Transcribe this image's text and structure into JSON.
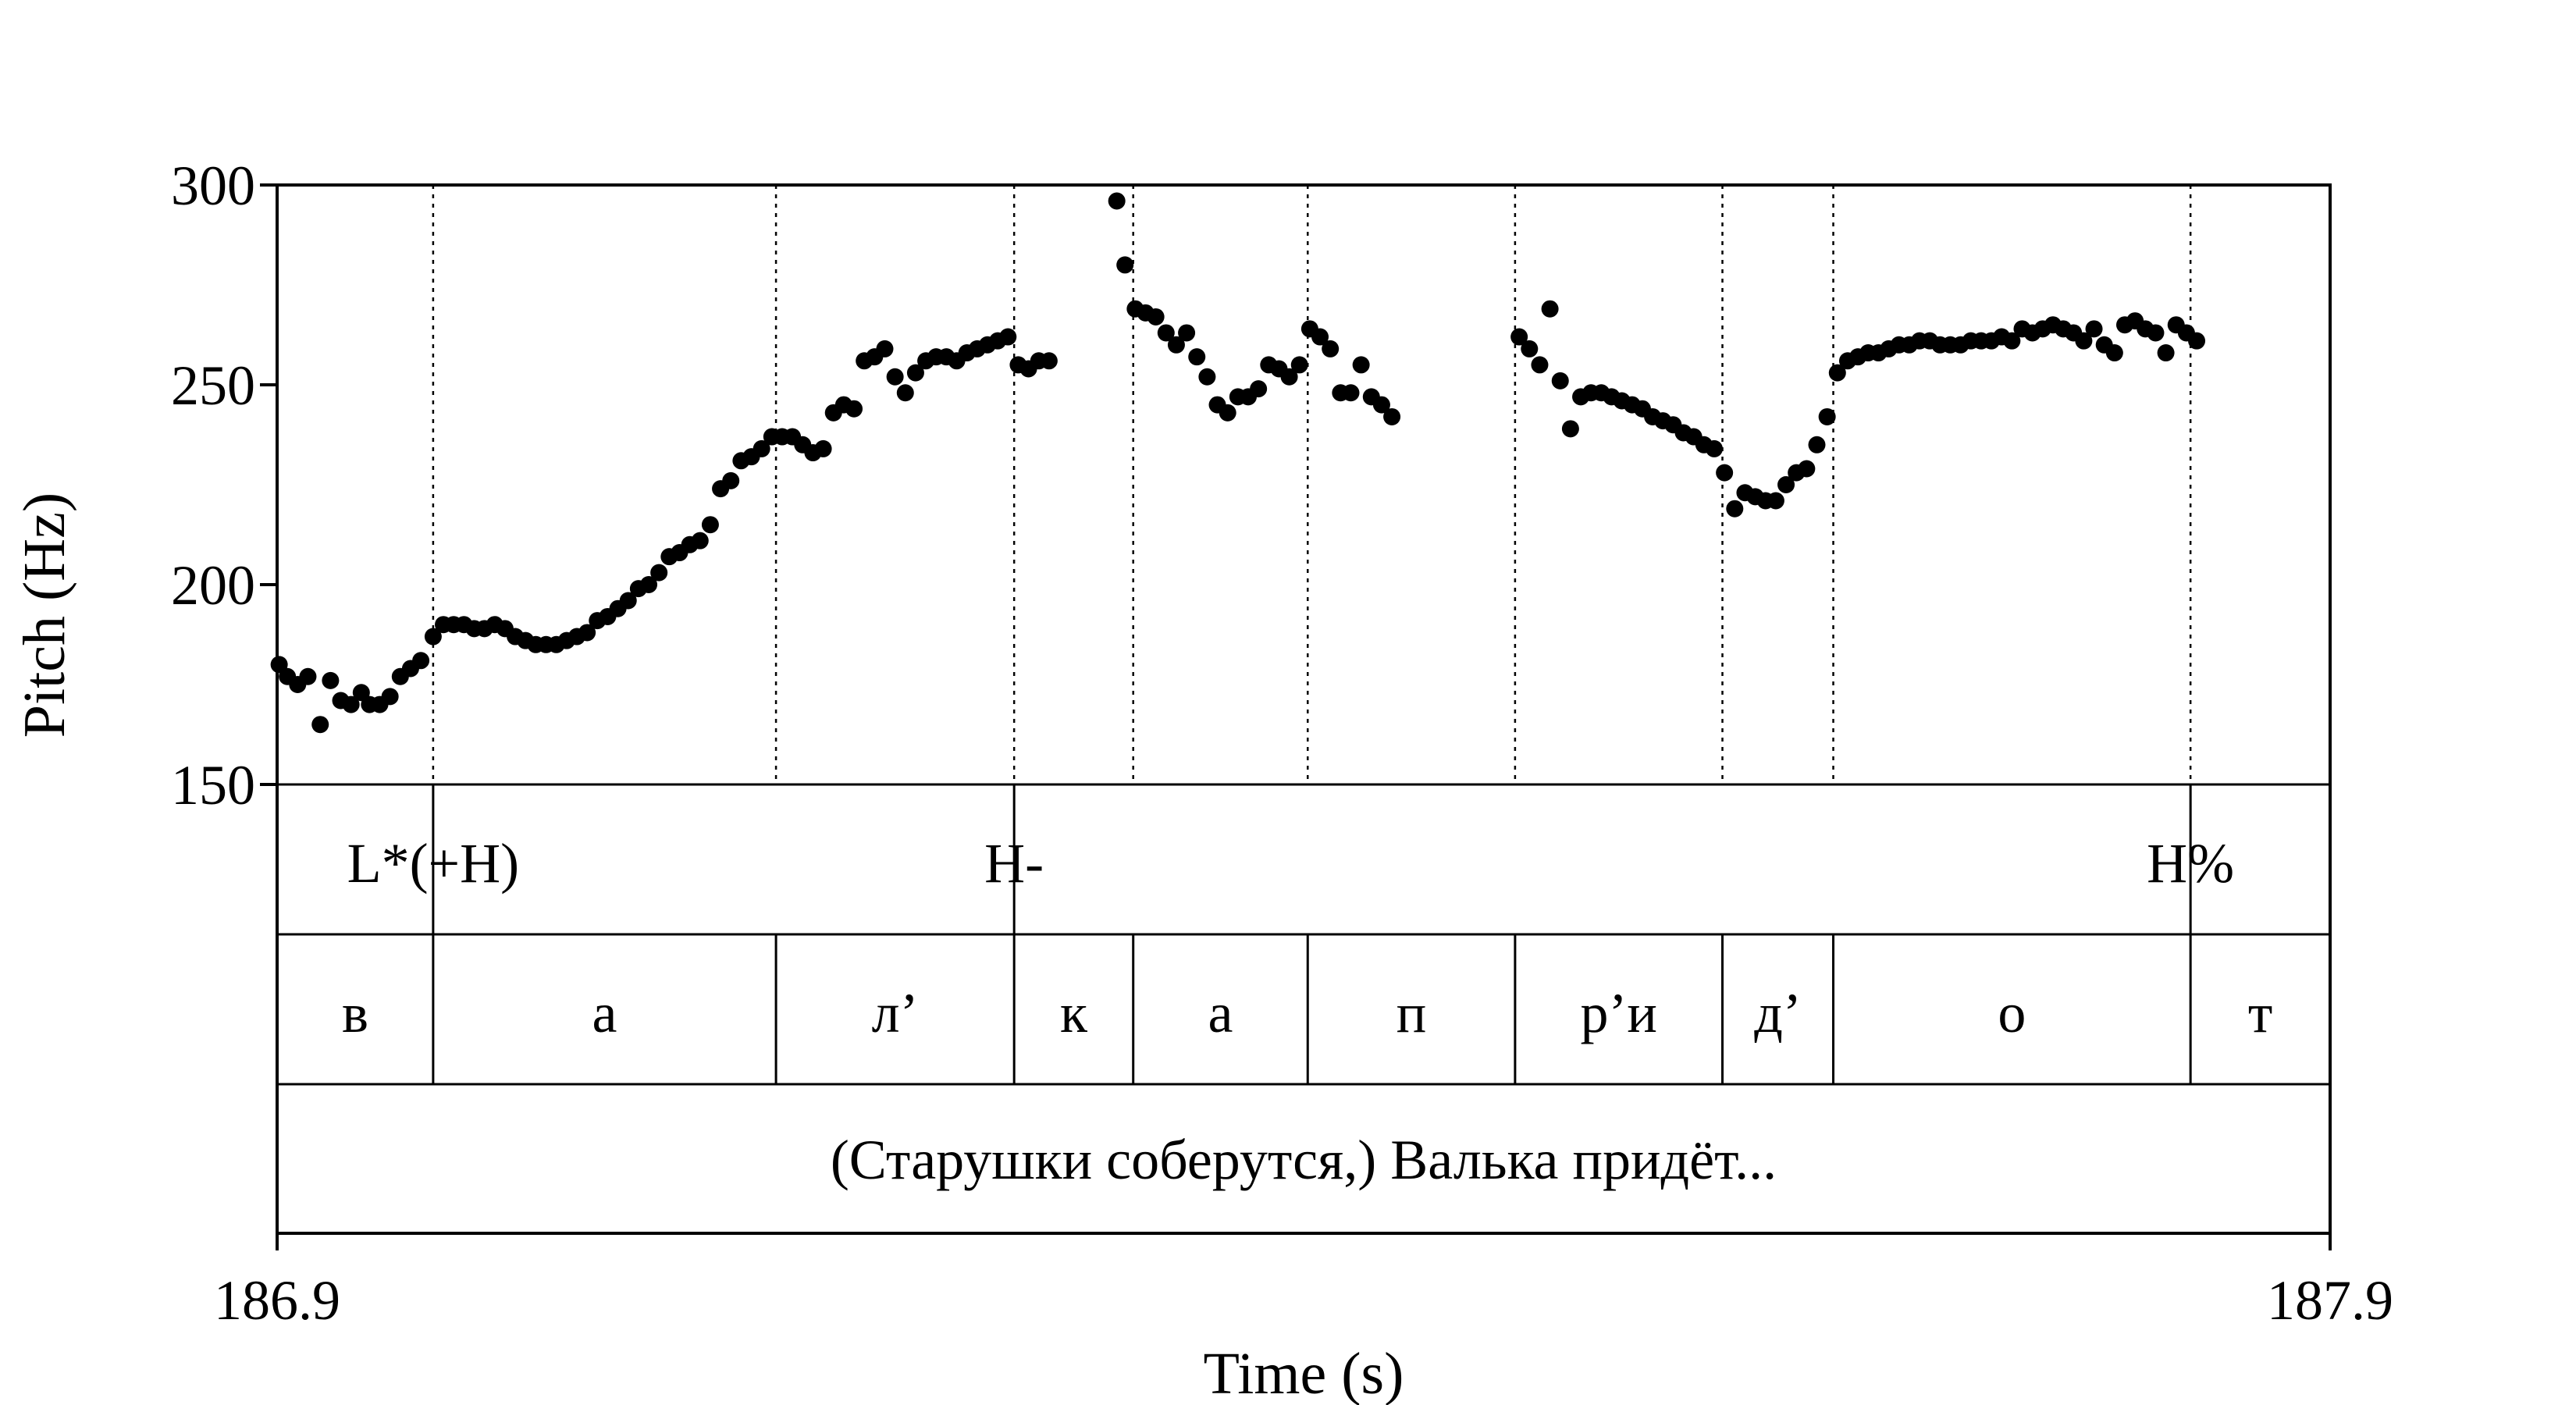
{
  "chart_data": {
    "type": "scatter",
    "title": "",
    "xlabel": "Time (s)",
    "ylabel": "Pitch (Hz)",
    "xlim": [
      186.9,
      187.9
    ],
    "ylim": [
      150,
      300
    ],
    "x_tick_labels": [
      "186.9",
      "187.9"
    ],
    "y_ticks": [
      {
        "value": 150,
        "label": "150"
      },
      {
        "value": 200,
        "label": "200"
      },
      {
        "value": 250,
        "label": "250"
      },
      {
        "value": 300,
        "label": "300"
      }
    ],
    "grid": false,
    "boundaries": [
      186.976,
      187.143,
      187.259,
      187.317,
      187.402,
      187.503,
      187.604,
      187.658,
      187.832
    ],
    "tones": [
      {
        "time": 186.976,
        "label": "L*(+H)"
      },
      {
        "time": 187.259,
        "label": "H-"
      },
      {
        "time": 187.832,
        "label": "H%"
      }
    ],
    "segments": [
      {
        "start": 186.9,
        "end": 186.976,
        "label": "в"
      },
      {
        "start": 186.976,
        "end": 187.143,
        "label": "а"
      },
      {
        "start": 187.143,
        "end": 187.259,
        "label": "л’"
      },
      {
        "start": 187.259,
        "end": 187.317,
        "label": "к"
      },
      {
        "start": 187.317,
        "end": 187.402,
        "label": "а"
      },
      {
        "start": 187.402,
        "end": 187.503,
        "label": "п"
      },
      {
        "start": 187.503,
        "end": 187.604,
        "label": "р’и"
      },
      {
        "start": 187.604,
        "end": 187.658,
        "label": "д’"
      },
      {
        "start": 187.658,
        "end": 187.832,
        "label": "о"
      },
      {
        "start": 187.832,
        "end": 187.9,
        "label": "т"
      }
    ],
    "utterance": "(Старушки соберутся,) Валька придёт...",
    "series": [
      {
        "points": [
          [
            186.901,
            180
          ],
          [
            186.905,
            177
          ],
          [
            186.91,
            175
          ],
          [
            186.915,
            177
          ],
          [
            186.921,
            165
          ],
          [
            186.926,
            176
          ],
          [
            186.931,
            171
          ],
          [
            186.936,
            170
          ],
          [
            186.941,
            173
          ],
          [
            186.945,
            170
          ],
          [
            186.95,
            170
          ],
          [
            186.955,
            172
          ],
          [
            186.96,
            177
          ],
          [
            186.965,
            179
          ],
          [
            186.97,
            181
          ],
          [
            186.976,
            187
          ],
          [
            186.981,
            190
          ],
          [
            186.986,
            190
          ],
          [
            186.991,
            190
          ],
          [
            186.996,
            189
          ],
          [
            187.001,
            189
          ],
          [
            187.006,
            190
          ],
          [
            187.011,
            189
          ],
          [
            187.016,
            187
          ],
          [
            187.021,
            186
          ],
          [
            187.026,
            185
          ],
          [
            187.031,
            185
          ],
          [
            187.036,
            185
          ],
          [
            187.041,
            186
          ],
          [
            187.046,
            187
          ],
          [
            187.051,
            188
          ],
          [
            187.056,
            191
          ],
          [
            187.061,
            192
          ],
          [
            187.066,
            194
          ],
          [
            187.071,
            196
          ],
          [
            187.076,
            199
          ],
          [
            187.081,
            200
          ],
          [
            187.086,
            203
          ],
          [
            187.091,
            207
          ],
          [
            187.096,
            208
          ],
          [
            187.101,
            210
          ],
          [
            187.106,
            211
          ],
          [
            187.111,
            215
          ],
          [
            187.116,
            224
          ],
          [
            187.121,
            226
          ],
          [
            187.126,
            231
          ],
          [
            187.131,
            232
          ],
          [
            187.136,
            234
          ],
          [
            187.141,
            237
          ],
          [
            187.146,
            237
          ],
          [
            187.151,
            237
          ],
          [
            187.156,
            235
          ],
          [
            187.161,
            233
          ],
          [
            187.166,
            234
          ],
          [
            187.171,
            243
          ],
          [
            187.176,
            245
          ],
          [
            187.181,
            244
          ],
          [
            187.186,
            256
          ],
          [
            187.191,
            257
          ],
          [
            187.196,
            259
          ],
          [
            187.201,
            252
          ],
          [
            187.206,
            248
          ],
          [
            187.211,
            253
          ],
          [
            187.216,
            256
          ],
          [
            187.221,
            257
          ],
          [
            187.226,
            257
          ],
          [
            187.231,
            256
          ],
          [
            187.236,
            258
          ],
          [
            187.241,
            259
          ],
          [
            187.246,
            260
          ],
          [
            187.251,
            261
          ],
          [
            187.256,
            262
          ],
          [
            187.261,
            255
          ],
          [
            187.266,
            254
          ],
          [
            187.271,
            256
          ],
          [
            187.276,
            256
          ]
        ]
      },
      {
        "points": [
          [
            187.309,
            296
          ],
          [
            187.313,
            280
          ],
          [
            187.318,
            269
          ],
          [
            187.323,
            268
          ],
          [
            187.328,
            267
          ],
          [
            187.333,
            263
          ],
          [
            187.338,
            260
          ],
          [
            187.343,
            263
          ],
          [
            187.348,
            257
          ],
          [
            187.353,
            252
          ],
          [
            187.358,
            245
          ],
          [
            187.363,
            243
          ],
          [
            187.368,
            247
          ],
          [
            187.373,
            247
          ],
          [
            187.378,
            249
          ],
          [
            187.383,
            255
          ],
          [
            187.388,
            254
          ],
          [
            187.393,
            252
          ],
          [
            187.398,
            255
          ],
          [
            187.403,
            264
          ],
          [
            187.408,
            262
          ],
          [
            187.413,
            259
          ],
          [
            187.418,
            248
          ],
          [
            187.423,
            248
          ],
          [
            187.428,
            255
          ],
          [
            187.433,
            247
          ],
          [
            187.438,
            245
          ],
          [
            187.443,
            242
          ]
        ]
      },
      {
        "points": [
          [
            187.505,
            262
          ],
          [
            187.51,
            259
          ],
          [
            187.515,
            255
          ],
          [
            187.52,
            269
          ],
          [
            187.525,
            251
          ],
          [
            187.53,
            239
          ],
          [
            187.535,
            247
          ],
          [
            187.54,
            248
          ],
          [
            187.545,
            248
          ],
          [
            187.55,
            247
          ],
          [
            187.555,
            246
          ],
          [
            187.56,
            245
          ],
          [
            187.565,
            244
          ],
          [
            187.57,
            242
          ],
          [
            187.575,
            241
          ],
          [
            187.58,
            240
          ],
          [
            187.585,
            238
          ],
          [
            187.59,
            237
          ],
          [
            187.595,
            235
          ],
          [
            187.6,
            234
          ],
          [
            187.605,
            228
          ],
          [
            187.61,
            219
          ],
          [
            187.615,
            223
          ],
          [
            187.62,
            222
          ],
          [
            187.625,
            221
          ],
          [
            187.63,
            221
          ],
          [
            187.635,
            225
          ],
          [
            187.64,
            228
          ],
          [
            187.645,
            229
          ],
          [
            187.65,
            235
          ],
          [
            187.655,
            242
          ],
          [
            187.66,
            253
          ],
          [
            187.665,
            256
          ],
          [
            187.67,
            257
          ],
          [
            187.675,
            258
          ],
          [
            187.68,
            258
          ],
          [
            187.685,
            259
          ],
          [
            187.69,
            260
          ],
          [
            187.695,
            260
          ],
          [
            187.7,
            261
          ],
          [
            187.705,
            261
          ],
          [
            187.71,
            260
          ],
          [
            187.715,
            260
          ],
          [
            187.72,
            260
          ],
          [
            187.725,
            261
          ],
          [
            187.73,
            261
          ],
          [
            187.735,
            261
          ],
          [
            187.74,
            262
          ],
          [
            187.745,
            261
          ],
          [
            187.75,
            264
          ],
          [
            187.755,
            263
          ],
          [
            187.76,
            264
          ],
          [
            187.765,
            265
          ],
          [
            187.77,
            264
          ],
          [
            187.775,
            263
          ],
          [
            187.78,
            261
          ],
          [
            187.785,
            264
          ],
          [
            187.79,
            260
          ],
          [
            187.795,
            258
          ],
          [
            187.8,
            265
          ],
          [
            187.805,
            266
          ],
          [
            187.81,
            264
          ],
          [
            187.815,
            263
          ],
          [
            187.82,
            258
          ],
          [
            187.825,
            265
          ],
          [
            187.83,
            263
          ],
          [
            187.835,
            261
          ]
        ]
      }
    ]
  }
}
